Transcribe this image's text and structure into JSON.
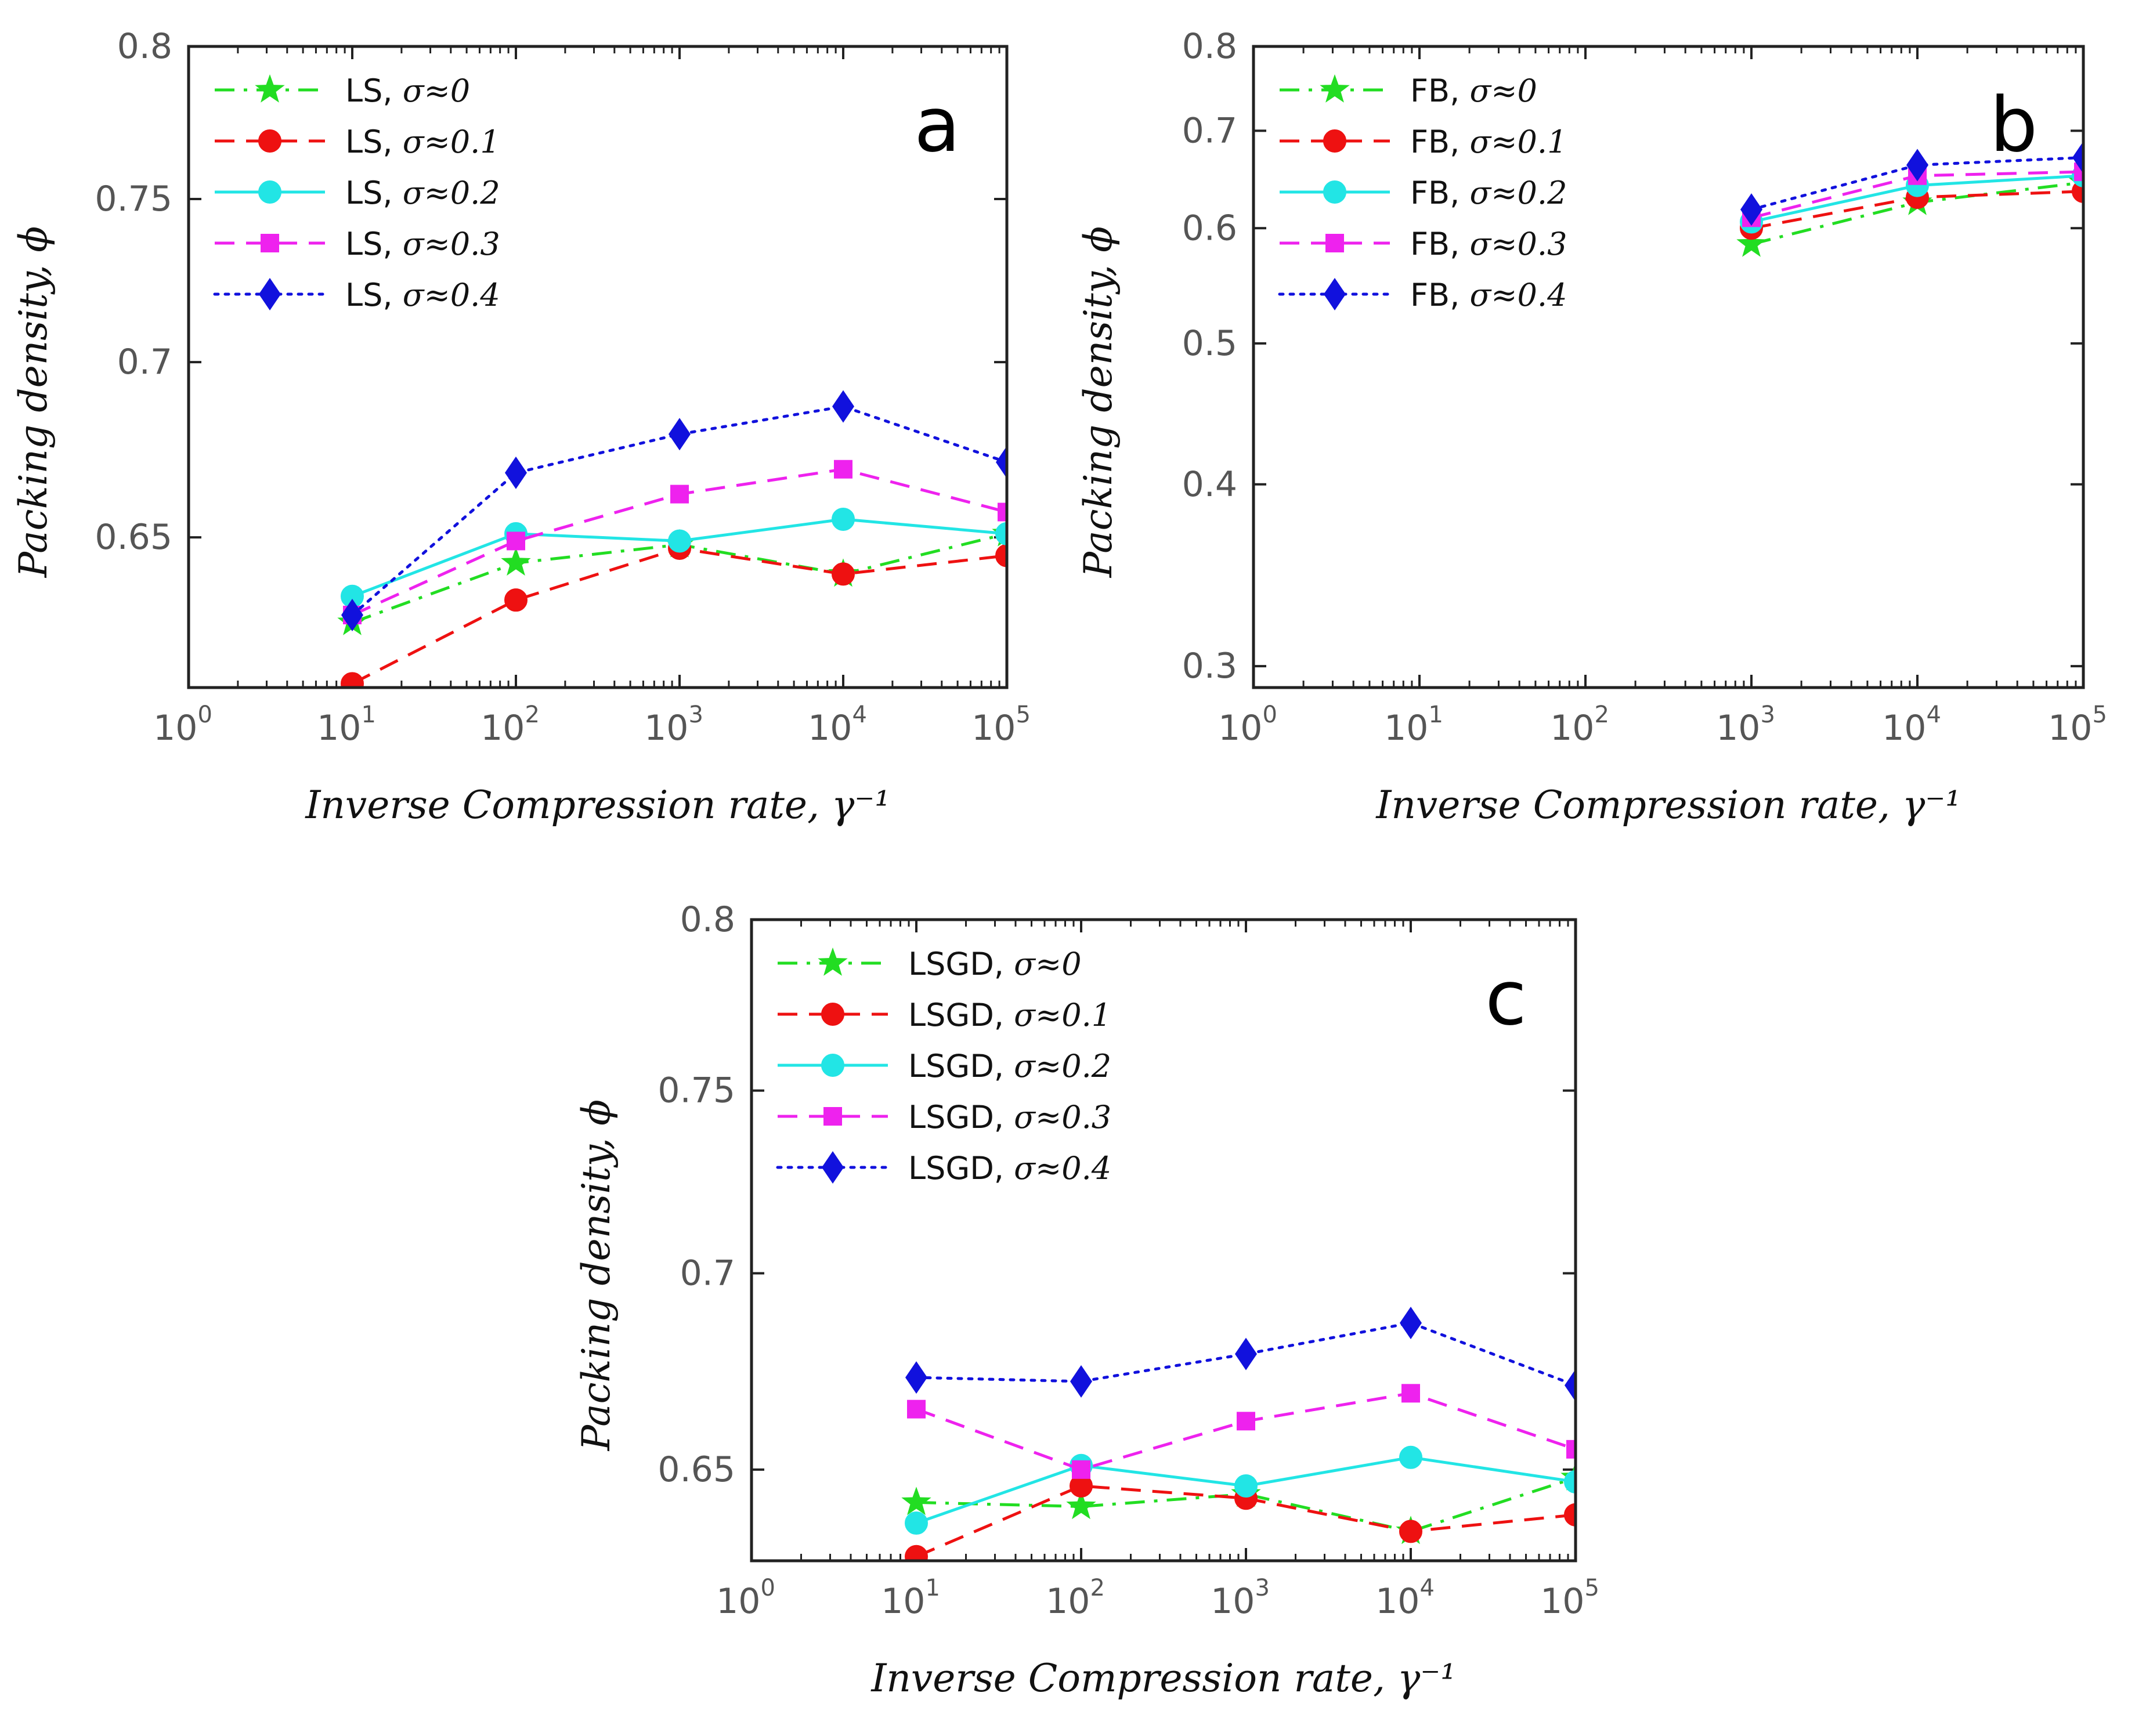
{
  "colors": {
    "sigma0": "#22dd22",
    "sigma01": "#ee1111",
    "sigma02": "#22e5e5",
    "sigma03": "#ee22ee",
    "sigma04": "#1111dd"
  },
  "chart_data": [
    {
      "type": "line",
      "panel_label": "a",
      "xscale": "log",
      "yscale": "log",
      "xlim": [
        1,
        100000
      ],
      "ylim": [
        0.61,
        0.8
      ],
      "x_ticks": [
        "0",
        "1",
        "2",
        "3",
        "4",
        "5"
      ],
      "x_tick_base": "10",
      "y_ticks": [
        "0.65",
        "0.7",
        "0.75",
        "0.8"
      ],
      "xlabel": "Inverse Compression rate, γ⁻¹",
      "ylabel": "Packing density, ϕ",
      "legend_position": "top-left",
      "series": [
        {
          "name": "LS,  σ≈0",
          "color_key": "sigma0",
          "dash": "dashdot",
          "marker": "star",
          "x": [
            10,
            100,
            1000,
            10000,
            100000
          ],
          "y": [
            0.627,
            0.643,
            0.648,
            0.64,
            0.651
          ]
        },
        {
          "name": "LS,  σ≈0.1",
          "color_key": "sigma01",
          "dash": "dash",
          "marker": "circle",
          "x": [
            10,
            100,
            1000,
            10000,
            100000
          ],
          "y": [
            0.611,
            0.633,
            0.647,
            0.64,
            0.645
          ]
        },
        {
          "name": "LS,  σ≈0.2",
          "color_key": "sigma02",
          "dash": "solid",
          "marker": "circle",
          "x": [
            10,
            100,
            1000,
            10000,
            100000
          ],
          "y": [
            0.634,
            0.651,
            0.649,
            0.655,
            0.651
          ]
        },
        {
          "name": "LS,  σ≈0.3",
          "color_key": "sigma03",
          "dash": "dash",
          "marker": "square",
          "x": [
            10,
            100,
            1000,
            10000,
            100000
          ],
          "y": [
            0.629,
            0.649,
            0.662,
            0.669,
            0.657
          ]
        },
        {
          "name": "LS,  σ≈0.4",
          "color_key": "sigma04",
          "dash": "dot",
          "marker": "diamond",
          "x": [
            10,
            100,
            1000,
            10000,
            100000
          ],
          "y": [
            0.629,
            0.668,
            0.679,
            0.687,
            0.671
          ]
        }
      ]
    },
    {
      "type": "line",
      "panel_label": "b",
      "xscale": "log",
      "yscale": "log",
      "xlim": [
        1,
        100000
      ],
      "ylim": [
        0.29,
        0.8
      ],
      "x_ticks": [
        "0",
        "1",
        "2",
        "3",
        "4",
        "5"
      ],
      "x_tick_base": "10",
      "y_ticks": [
        "0.3",
        "0.4",
        "0.5",
        "0.6",
        "0.7",
        "0.8"
      ],
      "xlabel": "Inverse Compression rate, γ⁻¹",
      "ylabel": "Packing density, ϕ",
      "legend_position": "top-left",
      "series": [
        {
          "name": "FB,  σ≈0",
          "color_key": "sigma0",
          "dash": "dashdot",
          "marker": "star",
          "x": [
            1000,
            10000,
            100000
          ],
          "y": [
            0.585,
            0.625,
            0.645
          ]
        },
        {
          "name": "FB,  σ≈0.1",
          "color_key": "sigma01",
          "dash": "dash",
          "marker": "circle",
          "x": [
            1000,
            10000,
            100000
          ],
          "y": [
            0.6,
            0.63,
            0.636
          ]
        },
        {
          "name": "FB,  σ≈0.2",
          "color_key": "sigma02",
          "dash": "solid",
          "marker": "circle",
          "x": [
            1000,
            10000,
            100000
          ],
          "y": [
            0.606,
            0.642,
            0.652
          ]
        },
        {
          "name": "FB,  σ≈0.3",
          "color_key": "sigma03",
          "dash": "dash",
          "marker": "square",
          "x": [
            1000,
            10000,
            100000
          ],
          "y": [
            0.61,
            0.652,
            0.656
          ]
        },
        {
          "name": "FB,  σ≈0.4",
          "color_key": "sigma04",
          "dash": "dot",
          "marker": "diamond",
          "x": [
            1000,
            10000,
            100000
          ],
          "y": [
            0.618,
            0.663,
            0.671
          ]
        }
      ]
    },
    {
      "type": "line",
      "panel_label": "c",
      "xscale": "log",
      "yscale": "log",
      "xlim": [
        1,
        100000
      ],
      "ylim": [
        0.628,
        0.8
      ],
      "x_ticks": [
        "0",
        "1",
        "2",
        "3",
        "4",
        "5"
      ],
      "x_tick_base": "10",
      "y_ticks": [
        "0.65",
        "0.7",
        "0.75",
        "0.8"
      ],
      "xlabel": "Inverse Compression rate, γ⁻¹",
      "ylabel": "Packing density, ϕ",
      "legend_position": "top-left",
      "series": [
        {
          "name": "LSGD,  σ≈0",
          "color_key": "sigma0",
          "dash": "dashdot",
          "marker": "star",
          "x": [
            10,
            100,
            1000,
            10000,
            100000
          ],
          "y": [
            0.642,
            0.641,
            0.644,
            0.635,
            0.648
          ]
        },
        {
          "name": "LSGD,  σ≈0.1",
          "color_key": "sigma01",
          "dash": "dash",
          "marker": "circle",
          "x": [
            10,
            100,
            1000,
            10000,
            100000
          ],
          "y": [
            0.629,
            0.646,
            0.643,
            0.635,
            0.639
          ]
        },
        {
          "name": "LSGD,  σ≈0.2",
          "color_key": "sigma02",
          "dash": "solid",
          "marker": "circle",
          "x": [
            10,
            100,
            1000,
            10000,
            100000
          ],
          "y": [
            0.637,
            0.651,
            0.646,
            0.653,
            0.647
          ]
        },
        {
          "name": "LSGD,  σ≈0.3",
          "color_key": "sigma03",
          "dash": "dash",
          "marker": "square",
          "x": [
            10,
            100,
            1000,
            10000,
            100000
          ],
          "y": [
            0.665,
            0.65,
            0.662,
            0.669,
            0.655
          ]
        },
        {
          "name": "LSGD,  σ≈0.4",
          "color_key": "sigma04",
          "dash": "dot",
          "marker": "diamond",
          "x": [
            10,
            100,
            1000,
            10000,
            100000
          ],
          "y": [
            0.673,
            0.672,
            0.679,
            0.687,
            0.671
          ]
        }
      ]
    }
  ]
}
